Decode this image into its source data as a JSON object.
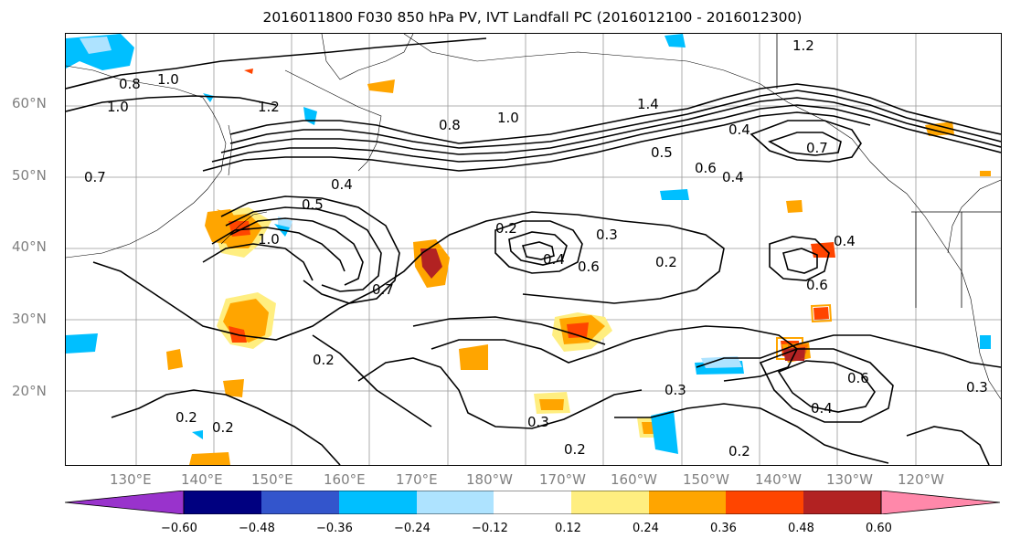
{
  "title": "2016011800 F030 850 hPa PV, IVT Landfall PC (2016012100 - 2016012300)",
  "lat_labels": [
    "60°N",
    "50°N",
    "40°N",
    "30°N",
    "20°N"
  ],
  "lon_labels": [
    "130°E",
    "140°E",
    "150°E",
    "160°E",
    "170°E",
    "180°W",
    "170°W",
    "160°W",
    "150°W",
    "140°W",
    "130°W",
    "120°W"
  ],
  "colorbar": {
    "ticks": [
      "−0.60",
      "−0.48",
      "−0.36",
      "−0.24",
      "−0.12",
      "0.12",
      "0.24",
      "0.36",
      "0.48",
      "0.60"
    ],
    "colors": [
      "#9933cc",
      "#000080",
      "#3355cc",
      "#00bfff",
      "#aee3ff",
      "#ffffff",
      "#ffee80",
      "#ffa500",
      "#ff4500",
      "#b22222",
      "#ff88aa"
    ]
  },
  "contour_labels": [
    "0.2",
    "0.3",
    "0.4",
    "0.5",
    "0.6",
    "0.7",
    "0.8",
    "1.0",
    "1.2",
    "1.4"
  ],
  "map_labels": {
    "l1": "1.0",
    "l2": "0.8",
    "l3": "1.0",
    "l4": "1.2",
    "l5": "0.7",
    "l6": "0.5",
    "l7": "0.4",
    "l8": "0.2",
    "l9": "0.3",
    "l10": "0.6",
    "l11": "0.4",
    "l12": "0.6",
    "l13": "0.2",
    "l14": "0.3",
    "l15": "0.2",
    "l16": "0.2",
    "l17": "0.2",
    "l18": "0.3",
    "l19": "0.2",
    "l20": "0.8",
    "l21": "1.0",
    "l22": "1.4",
    "l23": "0.4",
    "l24": "0.7",
    "l25": "0.6",
    "l26": "0.4",
    "l27": "0.5",
    "l28": "0.6",
    "l29": "0.4",
    "l30": "0.3",
    "l31": "0.2",
    "l32": "1.2",
    "l33": "1.0",
    "l34": "0.7",
    "l35": "0.4"
  }
}
